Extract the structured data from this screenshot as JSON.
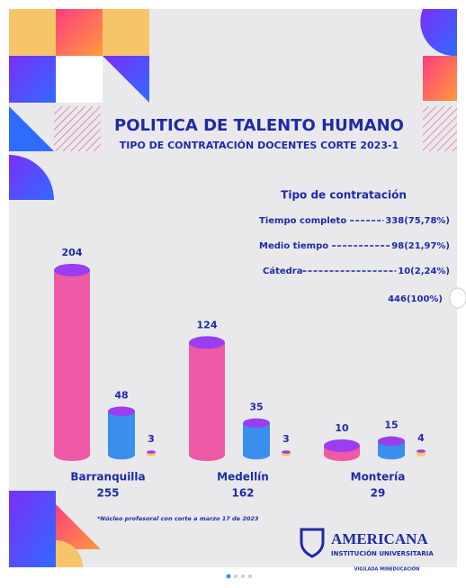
{
  "chart_data": {
    "type": "bar",
    "title": "POLITICA DE TALENTO HUMANO",
    "subtitle": "TIPO DE CONTRATACIÓN DOCENTES CORTE 2023-1",
    "legend_title": "Tipo de contratación",
    "categories": [
      "Barranquilla",
      "Medellín",
      "Montería"
    ],
    "category_totals": [
      255,
      162,
      29
    ],
    "series": [
      {
        "name": "Tiempo completo",
        "color": "#ee5aa6",
        "values": [
          204,
          124,
          10
        ],
        "total_label": "338(75,78%)"
      },
      {
        "name": "Medio tiempo",
        "color": "#3b8fec",
        "values": [
          48,
          35,
          15
        ],
        "total_label": "98(21,97%)"
      },
      {
        "name": "Cátedra",
        "color": "#f6c56a",
        "values": [
          3,
          3,
          4
        ],
        "total_label": "10(2,24%)"
      }
    ],
    "grand_total_label": "446(100%)",
    "footnote": "*Núcleo profesoral con corte a marzo 17 de 2023",
    "brand": "AMERICANA",
    "brand_subtitle": "INSTITUCIÓN UNIVERSITARIA",
    "brand_note": "VIGILADA MINEDUCACIÓN"
  }
}
